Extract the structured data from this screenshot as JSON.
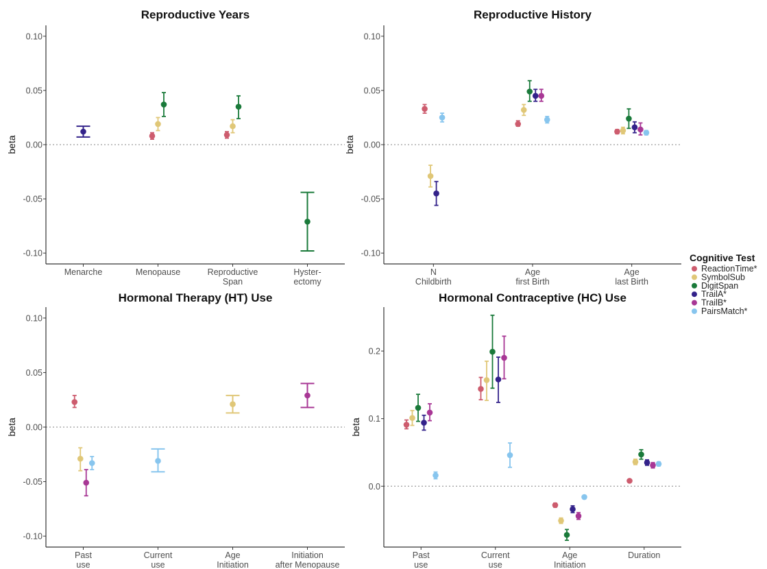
{
  "chart_data": [
    {
      "type": "scatter",
      "title": "Reproductive Years",
      "ylabel": "beta",
      "ylim": [
        -0.11,
        0.11
      ],
      "yticks": [
        0.1,
        0.05,
        0.0,
        -0.05,
        -0.1
      ],
      "ytick_labels": [
        "0.10",
        "0.05",
        "0.00",
        "-0.05",
        "-0.10"
      ],
      "categories": [
        [
          "Menarche"
        ],
        [
          "Menopause"
        ],
        [
          "Reproductive",
          "Span"
        ],
        [
          "Hyster-",
          "ectomy"
        ]
      ],
      "points": [
        {
          "cat": 0,
          "test": "TrailA*",
          "y": 0.012,
          "lo": 0.007,
          "hi": 0.017
        },
        {
          "cat": 1,
          "test": "ReactionTime*",
          "y": 0.008,
          "lo": 0.005,
          "hi": 0.011
        },
        {
          "cat": 1,
          "test": "SymbolSub",
          "y": 0.019,
          "lo": 0.013,
          "hi": 0.025
        },
        {
          "cat": 1,
          "test": "DigitSpan",
          "y": 0.037,
          "lo": 0.026,
          "hi": 0.048
        },
        {
          "cat": 2,
          "test": "ReactionTime*",
          "y": 0.009,
          "lo": 0.006,
          "hi": 0.012
        },
        {
          "cat": 2,
          "test": "SymbolSub",
          "y": 0.017,
          "lo": 0.011,
          "hi": 0.023
        },
        {
          "cat": 2,
          "test": "DigitSpan",
          "y": 0.035,
          "lo": 0.024,
          "hi": 0.045
        },
        {
          "cat": 3,
          "test": "DigitSpan",
          "y": -0.071,
          "lo": -0.098,
          "hi": -0.044
        }
      ]
    },
    {
      "type": "scatter",
      "title": "Reproductive History",
      "ylabel": "beta",
      "ylim": [
        -0.11,
        0.11
      ],
      "yticks": [
        0.1,
        0.05,
        0.0,
        -0.05,
        -0.1
      ],
      "ytick_labels": [
        "0.10",
        "0.05",
        "0.00",
        "-0.05",
        "-0.10"
      ],
      "categories": [
        [
          "N",
          "Childbirth"
        ],
        [
          "Age",
          "first Birth"
        ],
        [
          "Age",
          "last Birth"
        ]
      ],
      "points": [
        {
          "cat": 0,
          "test": "ReactionTime*",
          "y": 0.033,
          "lo": 0.029,
          "hi": 0.037
        },
        {
          "cat": 0,
          "test": "SymbolSub",
          "y": -0.029,
          "lo": -0.039,
          "hi": -0.019
        },
        {
          "cat": 0,
          "test": "TrailA*",
          "y": -0.045,
          "lo": -0.056,
          "hi": -0.034
        },
        {
          "cat": 0,
          "test": "PairsMatch*",
          "y": 0.025,
          "lo": 0.021,
          "hi": 0.029
        },
        {
          "cat": 1,
          "test": "ReactionTime*",
          "y": 0.019,
          "lo": 0.017,
          "hi": 0.022
        },
        {
          "cat": 1,
          "test": "SymbolSub",
          "y": 0.032,
          "lo": 0.027,
          "hi": 0.037
        },
        {
          "cat": 1,
          "test": "DigitSpan",
          "y": 0.049,
          "lo": 0.04,
          "hi": 0.059
        },
        {
          "cat": 1,
          "test": "TrailA*",
          "y": 0.045,
          "lo": 0.04,
          "hi": 0.051
        },
        {
          "cat": 1,
          "test": "TrailB*",
          "y": 0.045,
          "lo": 0.04,
          "hi": 0.051
        },
        {
          "cat": 1,
          "test": "PairsMatch*",
          "y": 0.023,
          "lo": 0.02,
          "hi": 0.026
        },
        {
          "cat": 2,
          "test": "ReactionTime*",
          "y": 0.012,
          "lo": 0.01,
          "hi": 0.014
        },
        {
          "cat": 2,
          "test": "SymbolSub",
          "y": 0.013,
          "lo": 0.01,
          "hi": 0.016
        },
        {
          "cat": 2,
          "test": "DigitSpan",
          "y": 0.024,
          "lo": 0.015,
          "hi": 0.033
        },
        {
          "cat": 2,
          "test": "TrailA*",
          "y": 0.016,
          "lo": 0.011,
          "hi": 0.021
        },
        {
          "cat": 2,
          "test": "TrailB*",
          "y": 0.014,
          "lo": 0.009,
          "hi": 0.02
        },
        {
          "cat": 2,
          "test": "PairsMatch*",
          "y": 0.011,
          "lo": 0.009,
          "hi": 0.013
        }
      ]
    },
    {
      "type": "scatter",
      "title": "Hormonal Therapy (HT) Use",
      "ylabel": "beta",
      "ylim": [
        -0.11,
        0.11
      ],
      "yticks": [
        0.1,
        0.05,
        0.0,
        -0.05,
        -0.1
      ],
      "ytick_labels": [
        "0.10",
        "0.05",
        "0.00",
        "-0.05",
        "-0.10"
      ],
      "categories": [
        [
          "Past",
          "use"
        ],
        [
          "Current",
          "use"
        ],
        [
          "Age",
          "Initiation"
        ],
        [
          "Initiation",
          "after Menopause"
        ]
      ],
      "points": [
        {
          "cat": 0,
          "test": "ReactionTime*",
          "y": 0.023,
          "lo": 0.018,
          "hi": 0.029
        },
        {
          "cat": 0,
          "test": "SymbolSub",
          "y": -0.029,
          "lo": -0.04,
          "hi": -0.019
        },
        {
          "cat": 0,
          "test": "TrailB*",
          "y": -0.051,
          "lo": -0.063,
          "hi": -0.039
        },
        {
          "cat": 0,
          "test": "PairsMatch*",
          "y": -0.033,
          "lo": -0.039,
          "hi": -0.027
        },
        {
          "cat": 1,
          "test": "PairsMatch*",
          "y": -0.031,
          "lo": -0.041,
          "hi": -0.02
        },
        {
          "cat": 2,
          "test": "SymbolSub",
          "y": 0.021,
          "lo": 0.013,
          "hi": 0.029
        },
        {
          "cat": 3,
          "test": "TrailB*",
          "y": 0.029,
          "lo": 0.018,
          "hi": 0.04
        }
      ]
    },
    {
      "type": "scatter",
      "title": "Hormonal Contraceptive (HC) Use",
      "ylabel": "beta",
      "ylim": [
        -0.09,
        0.265
      ],
      "yticks": [
        0.2,
        0.1,
        0.0
      ],
      "ytick_labels": [
        "0.2",
        "0.1",
        "0.0"
      ],
      "categories": [
        [
          "Past",
          "use"
        ],
        [
          "Current",
          "use"
        ],
        [
          "Age",
          "Initiation"
        ],
        [
          "Duration"
        ]
      ],
      "points": [
        {
          "cat": 0,
          "test": "ReactionTime*",
          "y": 0.091,
          "lo": 0.085,
          "hi": 0.098
        },
        {
          "cat": 0,
          "test": "SymbolSub",
          "y": 0.101,
          "lo": 0.09,
          "hi": 0.112
        },
        {
          "cat": 0,
          "test": "DigitSpan",
          "y": 0.116,
          "lo": 0.096,
          "hi": 0.136
        },
        {
          "cat": 0,
          "test": "TrailA*",
          "y": 0.094,
          "lo": 0.083,
          "hi": 0.105
        },
        {
          "cat": 0,
          "test": "TrailB*",
          "y": 0.109,
          "lo": 0.097,
          "hi": 0.122
        },
        {
          "cat": 0,
          "test": "PairsMatch*",
          "y": 0.016,
          "lo": 0.011,
          "hi": 0.021
        },
        {
          "cat": 1,
          "test": "ReactionTime*",
          "y": 0.144,
          "lo": 0.128,
          "hi": 0.161
        },
        {
          "cat": 1,
          "test": "SymbolSub",
          "y": 0.157,
          "lo": 0.127,
          "hi": 0.185
        },
        {
          "cat": 1,
          "test": "DigitSpan",
          "y": 0.199,
          "lo": 0.145,
          "hi": 0.253
        },
        {
          "cat": 1,
          "test": "TrailA*",
          "y": 0.158,
          "lo": 0.124,
          "hi": 0.191
        },
        {
          "cat": 1,
          "test": "TrailB*",
          "y": 0.19,
          "lo": 0.159,
          "hi": 0.222
        },
        {
          "cat": 1,
          "test": "PairsMatch*",
          "y": 0.046,
          "lo": 0.028,
          "hi": 0.064
        },
        {
          "cat": 2,
          "test": "ReactionTime*",
          "y": -0.028,
          "lo": -0.031,
          "hi": -0.025
        },
        {
          "cat": 2,
          "test": "SymbolSub",
          "y": -0.051,
          "lo": -0.055,
          "hi": -0.047
        },
        {
          "cat": 2,
          "test": "DigitSpan",
          "y": -0.072,
          "lo": -0.08,
          "hi": -0.064
        },
        {
          "cat": 2,
          "test": "TrailA*",
          "y": -0.034,
          "lo": -0.039,
          "hi": -0.029
        },
        {
          "cat": 2,
          "test": "TrailB*",
          "y": -0.044,
          "lo": -0.049,
          "hi": -0.039
        },
        {
          "cat": 2,
          "test": "PairsMatch*",
          "y": -0.016,
          "lo": -0.018,
          "hi": -0.014
        },
        {
          "cat": 3,
          "test": "ReactionTime*",
          "y": 0.008,
          "lo": 0.006,
          "hi": 0.01
        },
        {
          "cat": 3,
          "test": "SymbolSub",
          "y": 0.036,
          "lo": 0.032,
          "hi": 0.04
        },
        {
          "cat": 3,
          "test": "DigitSpan",
          "y": 0.047,
          "lo": 0.04,
          "hi": 0.054
        },
        {
          "cat": 3,
          "test": "TrailA*",
          "y": 0.035,
          "lo": 0.031,
          "hi": 0.039
        },
        {
          "cat": 3,
          "test": "TrailB*",
          "y": 0.031,
          "lo": 0.027,
          "hi": 0.035
        },
        {
          "cat": 3,
          "test": "PairsMatch*",
          "y": 0.033,
          "lo": 0.03,
          "hi": 0.036
        }
      ]
    }
  ],
  "legend": {
    "title": "Cognitive Test",
    "placement": "right",
    "items": [
      {
        "name": "ReactionTime*",
        "color": "#cd5c6e"
      },
      {
        "name": "SymbolSub",
        "color": "#e0c777"
      },
      {
        "name": "DigitSpan",
        "color": "#1a7a3a"
      },
      {
        "name": "TrailA*",
        "color": "#33228a"
      },
      {
        "name": "TrailB*",
        "color": "#a83795"
      },
      {
        "name": "PairsMatch*",
        "color": "#87c5ee"
      }
    ]
  },
  "zero_line": "dotted",
  "grid": false
}
